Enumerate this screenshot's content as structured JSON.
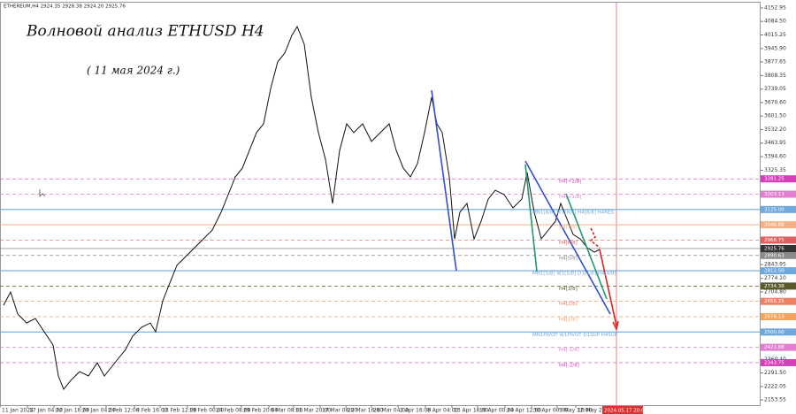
{
  "chart_data": {
    "type": "line",
    "header": "ETHEREUM,H4  2924.35 2928.38 2924.20 2925.76",
    "title": "Волновой анализ ETHUSD H4",
    "subtitle": "( 11 мая 2024 г.)",
    "xlim": [
      0,
      860
    ],
    "ylim": [
      2127,
      4180
    ],
    "x": [
      4,
      12,
      20,
      30,
      40,
      50,
      60,
      66,
      72,
      80,
      90,
      100,
      110,
      118,
      126,
      134,
      142,
      150,
      160,
      170,
      176,
      184,
      192,
      200,
      210,
      220,
      230,
      240,
      250,
      258,
      266,
      274,
      282,
      290,
      298,
      306,
      314,
      322,
      330,
      336,
      344,
      352,
      360,
      368,
      376,
      384,
      392,
      400,
      410,
      420,
      430,
      440,
      448,
      456,
      464,
      472,
      480,
      488,
      494,
      500,
      508,
      514,
      520,
      528,
      536,
      544,
      552,
      560,
      570,
      580,
      590,
      596,
      604,
      612,
      620,
      628,
      634,
      640,
      648,
      656,
      664,
      672,
      678
    ],
    "series": [
      {
        "name": "ETHEREUM,H4",
        "color": "#111111",
        "values": [
          2637,
          2704,
          2592,
          2546,
          2569,
          2501,
          2434,
          2276,
          2208,
          2253,
          2298,
          2276,
          2343,
          2276,
          2321,
          2366,
          2411,
          2479,
          2524,
          2546,
          2501,
          2659,
          2750,
          2840,
          2885,
          2930,
          2975,
          3020,
          3111,
          3201,
          3291,
          3336,
          3426,
          3517,
          3562,
          3742,
          3878,
          3923,
          4013,
          4058,
          3968,
          3697,
          3517,
          3381,
          3156,
          3426,
          3562,
          3517,
          3562,
          3472,
          3517,
          3562,
          3426,
          3336,
          3291,
          3359,
          3517,
          3697,
          3562,
          3517,
          3291,
          2975,
          3111,
          3156,
          2975,
          3065,
          3178,
          3223,
          3201,
          3133,
          3178,
          3314,
          3111,
          2975,
          3020,
          3065,
          3156,
          3088,
          2998,
          2975,
          2930,
          2907,
          2921
        ]
      }
    ],
    "xticks": [
      {
        "value": 0,
        "label": "11 Jan 2024"
      },
      {
        "value": 31,
        "label": "17 Jan 04:00"
      },
      {
        "value": 61,
        "label": "22 Jan 16:00"
      },
      {
        "value": 91,
        "label": "28 Jan 04:00"
      },
      {
        "value": 120,
        "label": "2 Feb 12:00"
      },
      {
        "value": 152,
        "label": "8 Feb 16:00"
      },
      {
        "value": 181,
        "label": "13 Feb 12:00"
      },
      {
        "value": 212,
        "label": "19 Feb 00:00"
      },
      {
        "value": 242,
        "label": "24 Feb 08:00"
      },
      {
        "value": 273,
        "label": "29 Feb 20:00"
      },
      {
        "value": 304,
        "label": "6 Mar 08:00"
      },
      {
        "value": 332,
        "label": "11 Mar 20:00"
      },
      {
        "value": 362,
        "label": "17 Mar 08:00"
      },
      {
        "value": 391,
        "label": "22 Mar 16:00"
      },
      {
        "value": 420,
        "label": "28 Mar 04:00"
      },
      {
        "value": 450,
        "label": "2 Apr 16:00"
      },
      {
        "value": 481,
        "label": "8 Apr 04:00"
      },
      {
        "value": 511,
        "label": "13 Apr 16:00"
      },
      {
        "value": 540,
        "label": "19 Apr 00:00"
      },
      {
        "value": 571,
        "label": "24 Apr 12:00"
      },
      {
        "value": 601,
        "label": "30 Apr 00:00"
      },
      {
        "value": 630,
        "label": "5 May 12:00"
      },
      {
        "value": 651,
        "label": "10 May 20:00"
      }
    ],
    "yticks": [
      4152.95,
      {
        "value": 4084.5,
        "label": "4084.50"
      },
      4015.25,
      {
        "value": 3945.9,
        "label": "3945.90"
      },
      3877.65,
      3808.35,
      3739.05,
      {
        "value": 3670.6,
        "label": "3670.60"
      },
      {
        "value": 3601.5,
        "label": "3601.50"
      },
      {
        "value": 3532.2,
        "label": "3532.20"
      },
      3463.95,
      {
        "value": 3394.6,
        "label": "3394.60"
      },
      3325.35,
      2843.95,
      {
        "value": 2774.1,
        "label": "2774.10"
      },
      {
        "value": 2704.8,
        "label": "2704.80"
      },
      {
        "value": 2360.4,
        "label": "2360.40"
      },
      {
        "value": 2291.5,
        "label": "2291.50"
      },
      2222.05,
      2153.55
    ],
    "levels": [
      {
        "name": "H4[+2/8]",
        "value": 3281.25,
        "color": "#d63fb8",
        "dash": true
      },
      {
        "name": "H4[+1/8]",
        "value": 3203.13,
        "color": "#e27fd0",
        "dash": true
      },
      {
        "name": "MN1[8/8] W1[8/8] H4[8/8] H4RES",
        "value": 3125,
        "value_label": "3125.00",
        "color": "#6fa8dc",
        "dash": false
      },
      {
        "name": "H4[7/8]",
        "value": 3046.88,
        "color": "#f4b183",
        "dash": false
      },
      {
        "name": "H4[6/8]",
        "value": 2968.75,
        "color": "#e06060",
        "dash": true
      },
      {
        "name": "H4[5/8]",
        "value": 2890.63,
        "color": "#8a8a8a",
        "dash": true
      },
      {
        "name": "MN1[5/8] W1[5/8] D1[1/8] H4[4/8]",
        "value": 2812.5,
        "value_label": "2812.50",
        "color": "#6fa8dc",
        "dash": false
      },
      {
        "name": "H4[3/8]",
        "value": 2734.38,
        "color": "#5a5a2a",
        "dash": true
      },
      {
        "name": "H4[2/8]",
        "value": 2656.25,
        "color": "#f08060",
        "dash": true
      },
      {
        "name": "H4[1/8]",
        "value": 2578.13,
        "color": "#f4a460",
        "dash": true
      },
      {
        "name": "MN1PIVOT W1PIVOT D1SUP H4SUP",
        "value": 2500,
        "value_label": "2500.00",
        "color": "#6fa8dc",
        "dash": false
      },
      {
        "name": "H4[-1/8]",
        "value": 2421.88,
        "color": "#e27fd0",
        "dash": true
      },
      {
        "name": "H4[-2/8]",
        "value": 2343.75,
        "color": "#d63fb8",
        "dash": true
      }
    ],
    "last_price": 2925.76,
    "future_marker": {
      "x": 697,
      "label": "2024.05.17 20:00"
    }
  }
}
